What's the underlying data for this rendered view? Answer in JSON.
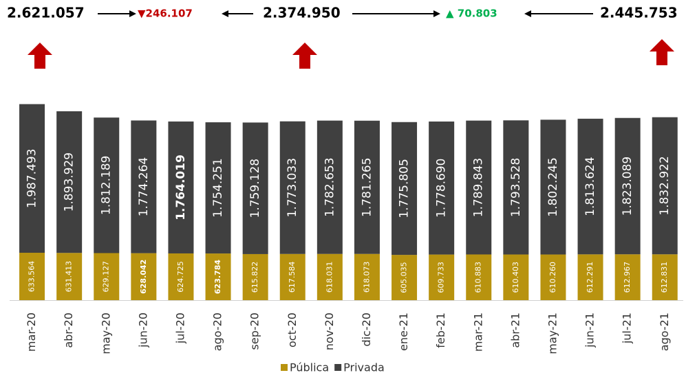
{
  "chart_data": {
    "type": "stacked_bar",
    "categories": [
      "mar-20",
      "abr-20",
      "may-20",
      "jun-20",
      "jul-20",
      "ago-20",
      "sep-20",
      "oct-20",
      "nov-20",
      "dic-20",
      "ene-21",
      "feb-21",
      "mar-21",
      "abr-21",
      "may-21",
      "jun-21",
      "jul-21",
      "ago-21"
    ],
    "series": [
      {
        "name": "Pública",
        "color": "#b8930f",
        "label_color": "#ffffff",
        "values": [
          633564,
          631413,
          629127,
          628042,
          624725,
          623784,
          615822,
          617584,
          618031,
          618073,
          605035,
          609733,
          610883,
          610403,
          610260,
          612291,
          612967,
          612831
        ],
        "value_labels": [
          "633.564",
          "631.413",
          "629.127",
          "628.042",
          "624.725",
          "623.784",
          "615.822",
          "617.584",
          "618.031",
          "618.073",
          "605.035",
          "609.733",
          "610.883",
          "610.403",
          "610.260",
          "612.291",
          "612.967",
          "612.831"
        ],
        "bold_labels": [
          3,
          5
        ]
      },
      {
        "name": "Privada",
        "color": "#404040",
        "label_color": "#ffffff",
        "values": [
          1987493,
          1893929,
          1812189,
          1774264,
          1764019,
          1754251,
          1759128,
          1773033,
          1782653,
          1781265,
          1775805,
          1778690,
          1789843,
          1793528,
          1802245,
          1813624,
          1823089,
          1832922
        ],
        "value_labels": [
          "1.987.493",
          "1.893.929",
          "1.812.189",
          "1.774.264",
          "1.764.019",
          "1.754.251",
          "1.759.128",
          "1.773.033",
          "1.782.653",
          "1.781.265",
          "1.775.805",
          "1.778.690",
          "1.789.843",
          "1.793.528",
          "1.802.245",
          "1.813.624",
          "1.823.089",
          "1.832.922"
        ],
        "bold_labels": [
          4
        ]
      }
    ],
    "ylim": [
      0,
      2700000
    ],
    "legend": "bottom",
    "annotations": [
      "2.621.057",
      "▼246.107",
      "2.374.950",
      "▲ 70.803",
      "2.445.753"
    ]
  }
}
